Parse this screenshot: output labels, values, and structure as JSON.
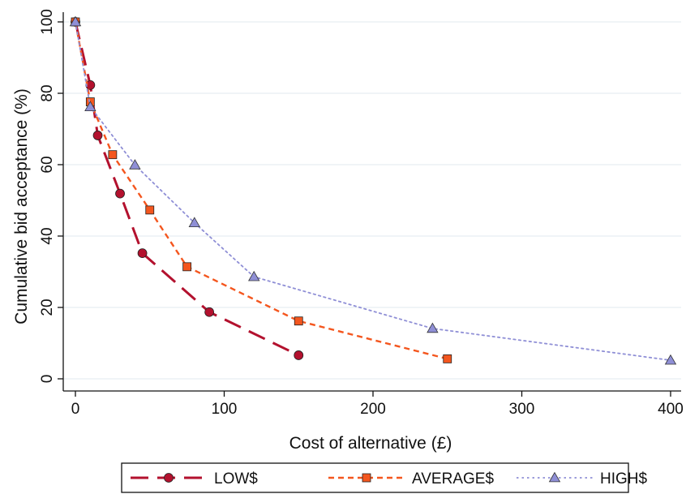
{
  "chart_data": {
    "type": "line",
    "title": "",
    "xlabel": "Cost of alternative (£)",
    "ylabel": "Cumulative bid acceptance (%)",
    "xlim": [
      0,
      400
    ],
    "ylim": [
      0,
      100
    ],
    "x_ticks": [
      0,
      100,
      200,
      300,
      400
    ],
    "y_ticks": [
      0,
      20,
      40,
      60,
      80,
      100
    ],
    "grid": "horizontal",
    "legend_position": "bottom",
    "series": [
      {
        "name": "LOW$",
        "color": "#b3112e",
        "line_style": "long-dash",
        "marker": "circle",
        "points": [
          [
            0,
            100
          ],
          [
            10,
            82.3
          ],
          [
            15,
            68.2
          ],
          [
            30,
            51.9
          ],
          [
            45,
            35.2
          ],
          [
            90,
            18.7
          ],
          [
            150,
            6.6
          ]
        ]
      },
      {
        "name": "AVERAGE$",
        "color": "#f4561e",
        "line_style": "short-dash",
        "marker": "square",
        "points": [
          [
            0,
            100
          ],
          [
            10,
            77.6
          ],
          [
            25,
            62.8
          ],
          [
            50,
            47.3
          ],
          [
            75,
            31.4
          ],
          [
            150,
            16.2
          ],
          [
            250,
            5.6
          ]
        ]
      },
      {
        "name": "HIGH$",
        "color": "#8f8fd6",
        "line_style": "dot",
        "marker": "triangle",
        "points": [
          [
            0,
            100
          ],
          [
            10,
            76.2
          ],
          [
            40,
            59.9
          ],
          [
            80,
            43.7
          ],
          [
            120,
            28.6
          ],
          [
            240,
            14.1
          ],
          [
            400,
            5.2
          ]
        ]
      }
    ]
  }
}
